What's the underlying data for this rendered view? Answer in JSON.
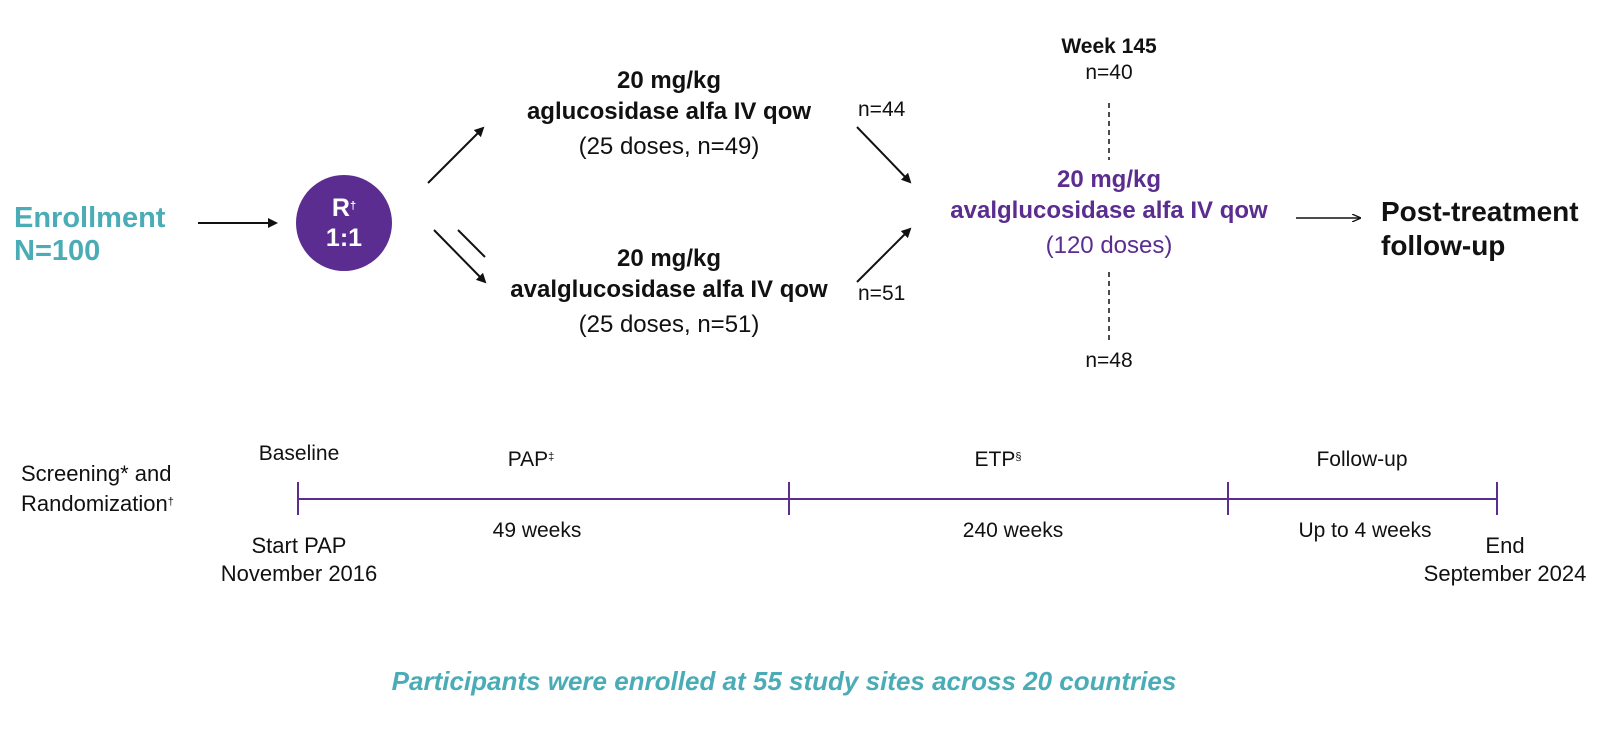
{
  "enrollment": {
    "label": "Enrollment",
    "count": "N=100"
  },
  "randomization": {
    "letter": "R",
    "mark": "†",
    "ratio": "1:1"
  },
  "arm_top": {
    "dose": "20 mg/kg",
    "drug": "aglucosidase alfa IV qow",
    "detail": "(25 doses, n=49)",
    "n_out": "n=44"
  },
  "arm_bottom": {
    "dose": "20 mg/kg",
    "drug": "avalglucosidase alfa IV qow",
    "detail": "(25 doses, n=51)",
    "n_out": "n=51"
  },
  "extension": {
    "week": "Week 145",
    "n_top": "n=40",
    "dose": "20 mg/kg",
    "drug": "avalglucosidase alfa IV qow",
    "detail": "(120 doses)",
    "n_bottom": "n=48"
  },
  "post_treatment": {
    "line1": "Post-treatment",
    "line2": "follow-up"
  },
  "timeline": {
    "screening_line1": "Screening* and",
    "screening_line2": "Randomization",
    "screening_mark": "†",
    "baseline": "Baseline",
    "pap_label": "PAP",
    "pap_mark": "‡",
    "etp_label": "ETP",
    "etp_mark": "§",
    "followup_label": "Follow-up",
    "pap_duration": "49 weeks",
    "etp_duration": "240 weeks",
    "followup_duration": "Up to 4 weeks",
    "start_line1": "Start PAP",
    "start_line2": "November 2016",
    "end_line1": "End",
    "end_line2": "September 2024"
  },
  "footer": "Participants were enrolled at 55 study sites across 20 countries",
  "colors": {
    "teal": "#4aacb6",
    "purple": "#5b2d90",
    "text": "#111111"
  }
}
